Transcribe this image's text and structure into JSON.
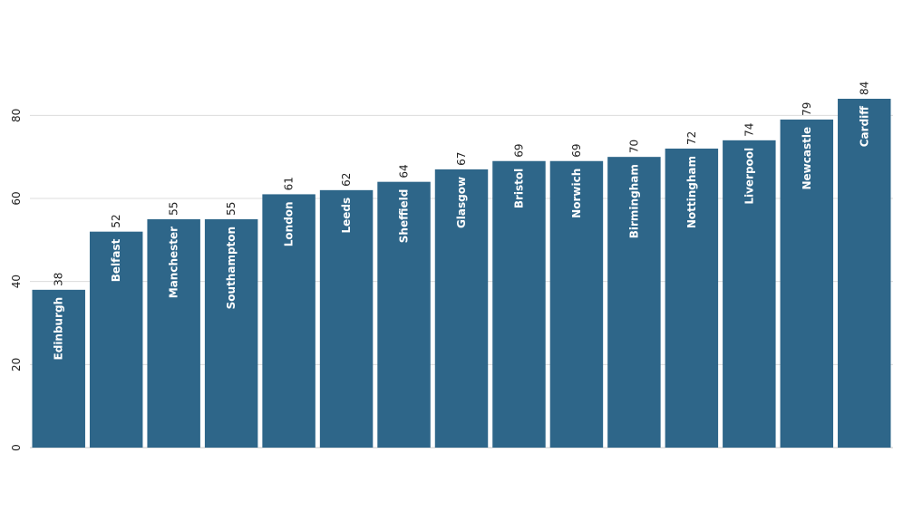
{
  "chart_data": {
    "type": "bar",
    "title": "",
    "xlabel": "",
    "ylabel": "",
    "categories": [
      "Edinburgh",
      "Belfast",
      "Manchester",
      "Southampton",
      "London",
      "Leeds",
      "Sheffield",
      "Glasgow",
      "Bristol",
      "Norwich",
      "Birmingham",
      "Nottingham",
      "Liverpool",
      "Newcastle",
      "Cardiff"
    ],
    "values": [
      38,
      52,
      55,
      55,
      61,
      62,
      64,
      67,
      69,
      69,
      70,
      72,
      74,
      79,
      84
    ],
    "value_labels": [
      "38",
      "52",
      "55",
      "55",
      "61",
      "62",
      "64",
      "67",
      "69",
      "69",
      "70",
      "72",
      "74",
      "79",
      "84"
    ],
    "ylim": [
      0,
      84
    ],
    "yticks": [
      0,
      20,
      40,
      60,
      80
    ],
    "ytick_labels": [
      "0",
      "20",
      "40",
      "60",
      "80"
    ],
    "grid": true,
    "legend": "none",
    "bar_color": "#2e6689"
  }
}
